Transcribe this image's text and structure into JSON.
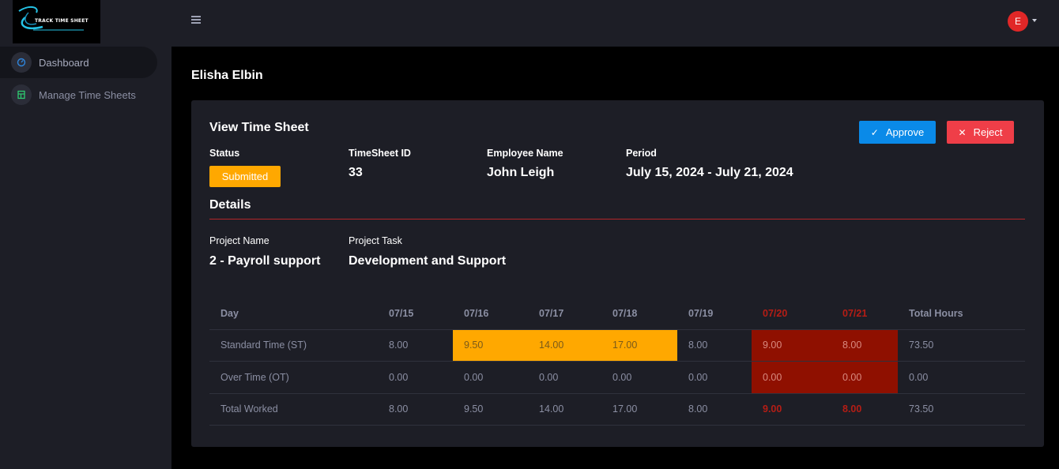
{
  "app": {
    "logo_text": "TRACK TIME SHEET"
  },
  "sidebar": {
    "items": [
      {
        "label": "Dashboard",
        "icon": "speedometer-icon",
        "active": true
      },
      {
        "label": "Manage Time Sheets",
        "icon": "spreadsheet-icon",
        "active": false
      }
    ]
  },
  "topbar": {
    "menu_icon": "hamburger-icon",
    "avatar_initial": "E"
  },
  "page": {
    "user_name": "Elisha Elbin"
  },
  "timesheet": {
    "title": "View Time Sheet",
    "approve_label": "Approve",
    "reject_label": "Reject",
    "status_label": "Status",
    "status_value": "Submitted",
    "id_label": "TimeSheet ID",
    "id_value": "33",
    "employee_label": "Employee Name",
    "employee_value": "John Leigh",
    "period_label": "Period",
    "period_value": "July 15, 2024 - July 21, 2024",
    "details_title": "Details",
    "project_name_label": "Project Name",
    "project_name_value": "2 - Payroll support",
    "project_task_label": "Project Task",
    "project_task_value": "Development and Support"
  },
  "table": {
    "headers": [
      "Day",
      "07/15",
      "07/16",
      "07/17",
      "07/18",
      "07/19",
      "07/20",
      "07/21",
      "Total Hours"
    ],
    "rows": [
      {
        "cells": [
          "Standard Time (ST)",
          "8.00",
          "9.50",
          "14.00",
          "17.00",
          "8.00",
          "9.00",
          "8.00",
          "73.50"
        ]
      },
      {
        "cells": [
          "Over Time (OT)",
          "0.00",
          "0.00",
          "0.00",
          "0.00",
          "0.00",
          "0.00",
          "0.00",
          "0.00"
        ]
      },
      {
        "cells": [
          "Total Worked",
          "8.00",
          "9.50",
          "14.00",
          "17.00",
          "8.00",
          "9.00",
          "8.00",
          "73.50"
        ]
      }
    ]
  },
  "colors": {
    "approve": "#0a8ae8",
    "reject": "#ef3e48",
    "status_submitted": "#ffa800",
    "overtime_highlight": "#ffa800",
    "weekend_highlight": "#8f1000",
    "weekend_text": "#b51d15"
  }
}
